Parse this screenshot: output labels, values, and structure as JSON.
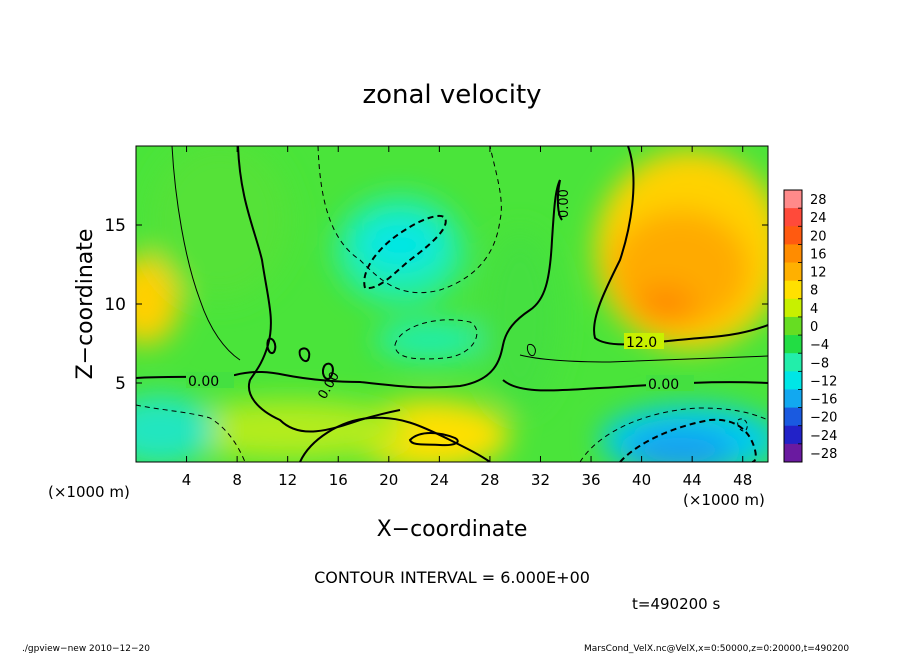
{
  "chart_data": {
    "type": "heatmap",
    "title": "zonal velocity",
    "xlabel": "X−coordinate",
    "ylabel": "Z−coordinate",
    "x_unit_left": "(×1000 m)",
    "x_unit_right": "(×1000 m)",
    "xlim": [
      0,
      50
    ],
    "ylim": [
      0,
      20
    ],
    "x_ticks": [
      4,
      8,
      12,
      16,
      20,
      24,
      28,
      32,
      36,
      40,
      44,
      48
    ],
    "y_ticks": [
      5,
      10,
      15
    ],
    "colorbar": {
      "levels": [
        -28,
        -24,
        -20,
        -16,
        -12,
        -8,
        -4,
        0,
        4,
        8,
        12,
        16,
        20,
        24,
        28
      ],
      "labels": [
        "28",
        "24",
        "20",
        "16",
        "12",
        "8",
        "4",
        "0",
        "−4",
        "−8",
        "−12",
        "−16",
        "−20",
        "−24",
        "−28"
      ],
      "colors": [
        "#ff8a8a",
        "#ff4a3a",
        "#ff5a10",
        "#ff8c00",
        "#ffb000",
        "#ffe000",
        "#c8f000",
        "#66dd22",
        "#22dd44",
        "#22eeaa",
        "#00e6e6",
        "#12a8f0",
        "#1a5ae0",
        "#2222c8",
        "#6a1aa0"
      ]
    },
    "contour_labels": [
      "0.00",
      "0.00",
      "0.00",
      "0.00",
      "12.0"
    ],
    "field_features": [
      {
        "type": "max",
        "x": 42,
        "z": 12,
        "value": 16
      },
      {
        "type": "max",
        "x": 1,
        "z": 10,
        "value": 12
      },
      {
        "type": "max",
        "x": 23,
        "z": 2,
        "value": 12
      },
      {
        "type": "min",
        "x": 20.5,
        "z": 14,
        "value": -12
      },
      {
        "type": "min",
        "x": 43,
        "z": 1,
        "value": -16
      },
      {
        "type": "min",
        "x": 1,
        "z": 2,
        "value": -8
      },
      {
        "type": "min",
        "x": 23,
        "z": 8,
        "value": -8
      }
    ]
  },
  "annotations": {
    "contour_interval": "CONTOUR INTERVAL = 6.000E+00",
    "time": "t=490200 s",
    "footer_left": "./gpview−new   2010−12−20",
    "footer_right": "MarsCond_VelX.nc@VelX,x=0:50000,z=0:20000,t=490200"
  }
}
